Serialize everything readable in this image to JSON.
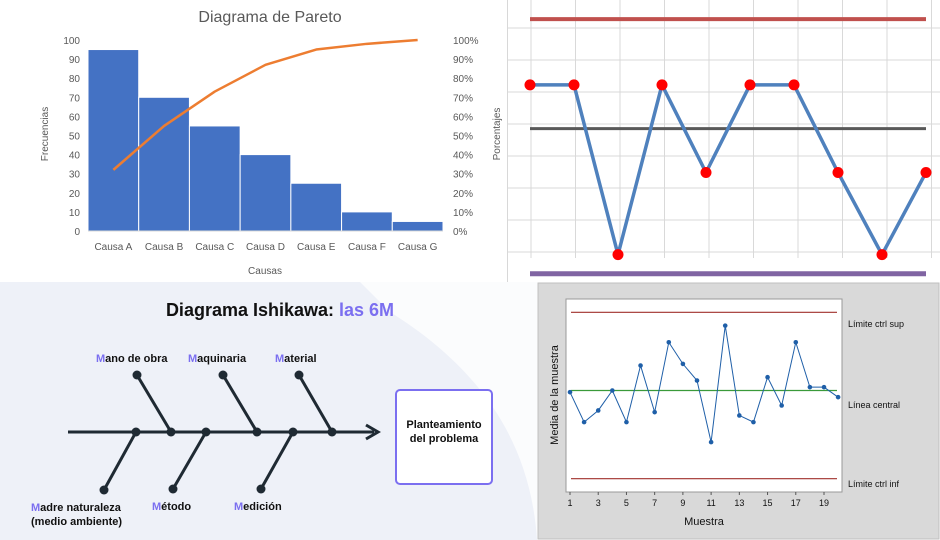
{
  "pareto": {
    "title": "Diagrama de Pareto",
    "xlabel": "Causas",
    "ylabel_left": "Frecuencias",
    "ylabel_right": "Porcentajes",
    "colors": {
      "bar": "#4472c4",
      "line": "#ed7d31",
      "text": "#595959",
      "title": "#595959"
    },
    "left_ticks": [
      "0",
      "10",
      "20",
      "30",
      "40",
      "50",
      "60",
      "70",
      "80",
      "90",
      "100"
    ],
    "right_ticks": [
      "0%",
      "10%",
      "20%",
      "30%",
      "40%",
      "50%",
      "60%",
      "70%",
      "80%",
      "90%",
      "100%"
    ]
  },
  "control": {
    "colors": {
      "ucl": "#c0504d",
      "center": "#595959",
      "lcl": "#8064a2",
      "line": "#4f81bd",
      "point": "#ff0000",
      "grid": "#d9d9d9"
    }
  },
  "ishikawa": {
    "title_main": "Diagrama Ishikawa: ",
    "title_accent": "las 6M",
    "problem_line1": "Planteamiento",
    "problem_line2": "del problema",
    "colors": {
      "accent": "#7b6ff0",
      "spine": "#1f2a33",
      "text": "#111111",
      "box_border": "#7b6ff0"
    },
    "causes_top": [
      {
        "initial": "M",
        "rest": "ano de obra"
      },
      {
        "initial": "M",
        "rest": "aquinaria"
      },
      {
        "initial": "M",
        "rest": "aterial"
      }
    ],
    "causes_bottom": [
      {
        "initial": "M",
        "rest": "adre naturaleza",
        "line2": "(medio ambiente)"
      },
      {
        "initial": "M",
        "rest": "étodo"
      },
      {
        "initial": "M",
        "rest": "edición"
      }
    ]
  },
  "spc": {
    "xlabel": "Muestra",
    "ylabel": "Media de la muestra",
    "label_ucl": "Límite ctrl sup",
    "label_center": "Línea central",
    "label_lcl": "Límite ctrl inf",
    "colors": {
      "line": "#1f5fa8",
      "ucl": "#a0302c",
      "center": "#3a9a3a",
      "lcl": "#a0302c",
      "frame_bg": "#d9d9d9"
    }
  },
  "chart_data": [
    {
      "type": "bar",
      "title": "Diagrama de Pareto",
      "xlabel": "Causas",
      "ylabel": "Frecuencias",
      "y2label": "Porcentajes",
      "categories": [
        "Causa A",
        "Causa B",
        "Causa C",
        "Causa D",
        "Causa E",
        "Causa F",
        "Causa G"
      ],
      "values": [
        95,
        70,
        55,
        40,
        25,
        10,
        5
      ],
      "cumulative_percent": [
        32,
        55,
        73,
        87,
        95,
        98,
        100
      ],
      "ylim": [
        0,
        100
      ],
      "y2lim": [
        0,
        100
      ]
    },
    {
      "type": "line",
      "ucl": 96,
      "center": 56,
      "lcl": 3,
      "ylim": [
        0,
        103
      ],
      "values": [
        72,
        72,
        10,
        72,
        40,
        72,
        72,
        40,
        10,
        40
      ]
    },
    {
      "type": "line",
      "xlabel": "Muestra",
      "ylabel": "Media de la muestra",
      "x_ticks": [
        "1",
        "3",
        "5",
        "7",
        "9",
        "11",
        "13",
        "15",
        "17",
        "19"
      ],
      "ucl": 10,
      "center": 5.3,
      "lcl": 0,
      "ylim": [
        -0.8,
        10.8
      ],
      "x": [
        1,
        2,
        3,
        4,
        5,
        6,
        7,
        8,
        9,
        10,
        11,
        12,
        13,
        14,
        15,
        16,
        17,
        18,
        19,
        20
      ],
      "values": [
        5.2,
        3.4,
        4.1,
        5.3,
        3.4,
        6.8,
        4.0,
        8.2,
        6.9,
        5.9,
        2.2,
        9.2,
        3.8,
        3.4,
        6.1,
        4.4,
        8.2,
        5.5,
        5.5,
        4.9
      ]
    }
  ]
}
